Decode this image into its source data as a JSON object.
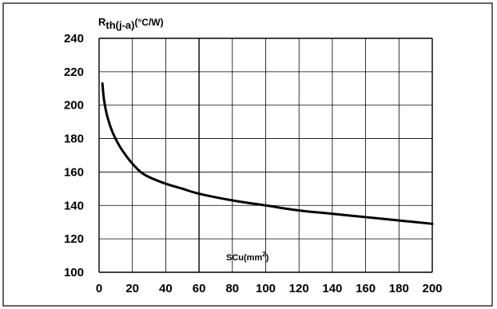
{
  "chart_data": {
    "type": "line",
    "title": "",
    "ylabel": {
      "main": "R",
      "sub": "th(j-a)",
      "unit": "(°C/W)"
    },
    "xlabel": {
      "main": "SCu(mm",
      "sup": "2",
      "end": ")"
    },
    "xlim": [
      0,
      200
    ],
    "ylim": [
      100,
      240
    ],
    "xticks": [
      0,
      20,
      40,
      60,
      80,
      100,
      120,
      140,
      160,
      180,
      200
    ],
    "yticks": [
      100,
      120,
      140,
      160,
      180,
      200,
      220,
      240
    ],
    "grid": true,
    "series": [
      {
        "x": [
          2,
          3,
          5,
          8,
          12,
          16,
          20,
          25,
          30,
          40,
          50,
          60,
          80,
          100,
          120,
          140,
          160,
          180,
          200
        ],
        "y": [
          213,
          203,
          193,
          184,
          176,
          170,
          165,
          160,
          157,
          153,
          150,
          147,
          143,
          140,
          137,
          135,
          133,
          131,
          129
        ]
      }
    ]
  }
}
